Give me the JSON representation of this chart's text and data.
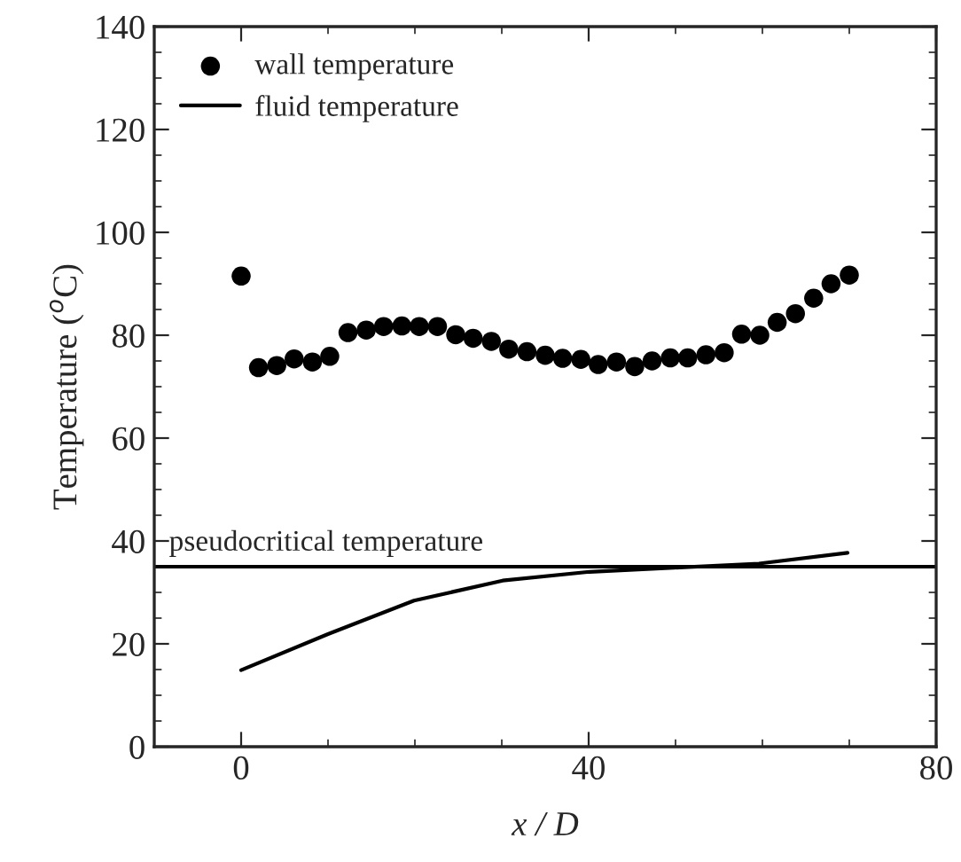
{
  "chart_data": {
    "type": "scatter",
    "xlabel": "x / D",
    "ylabel": "Temperature ($^{o}$C)",
    "xlim": [
      -10,
      80
    ],
    "xticks": [
      0,
      40,
      80
    ],
    "ylim": [
      0,
      140
    ],
    "yticks": [
      0,
      20,
      40,
      60,
      80,
      100,
      120,
      140
    ],
    "legend": "top left",
    "grid": false,
    "series": [
      {
        "name": "wall temperature",
        "marker": "circle",
        "color": "#000000",
        "x": [
          0,
          2,
          4.1,
          6.1,
          8.2,
          10.2,
          12.3,
          14.4,
          16.4,
          18.5,
          20.5,
          22.6,
          24.7,
          26.7,
          28.8,
          30.8,
          32.9,
          35,
          37,
          39.1,
          41.1,
          43.2,
          45.3,
          47.3,
          49.4,
          51.4,
          53.5,
          55.6,
          57.6,
          59.7,
          61.7,
          63.8,
          65.9,
          67.9,
          70
        ],
        "values": [
          91.5,
          73.7,
          74.1,
          75.4,
          74.8,
          75.9,
          80.5,
          81.0,
          81.7,
          81.8,
          81.7,
          81.7,
          80.1,
          79.4,
          78.8,
          77.3,
          76.8,
          76.1,
          75.5,
          75.3,
          74.3,
          74.8,
          73.9,
          75.0,
          75.6,
          75.6,
          76.2,
          76.6,
          80.2,
          80.0,
          82.5,
          84.2,
          87.2,
          90.0,
          91.7
        ]
      },
      {
        "name": "fluid temperature",
        "type": "line",
        "marker": "none",
        "line_style": "solid",
        "color": "#000000",
        "x": [
          0,
          10,
          19.9,
          30.1,
          40.1,
          49.8,
          59.6,
          69.8
        ],
        "values": [
          14.9,
          21.9,
          28.4,
          32.3,
          34.0,
          34.8,
          35.6,
          37.7
        ]
      }
    ],
    "ref_lines": [
      {
        "axis": "y",
        "value": 35,
        "label": "pseudocritical temperature",
        "color": "#000000",
        "line_style": "solid"
      }
    ]
  }
}
